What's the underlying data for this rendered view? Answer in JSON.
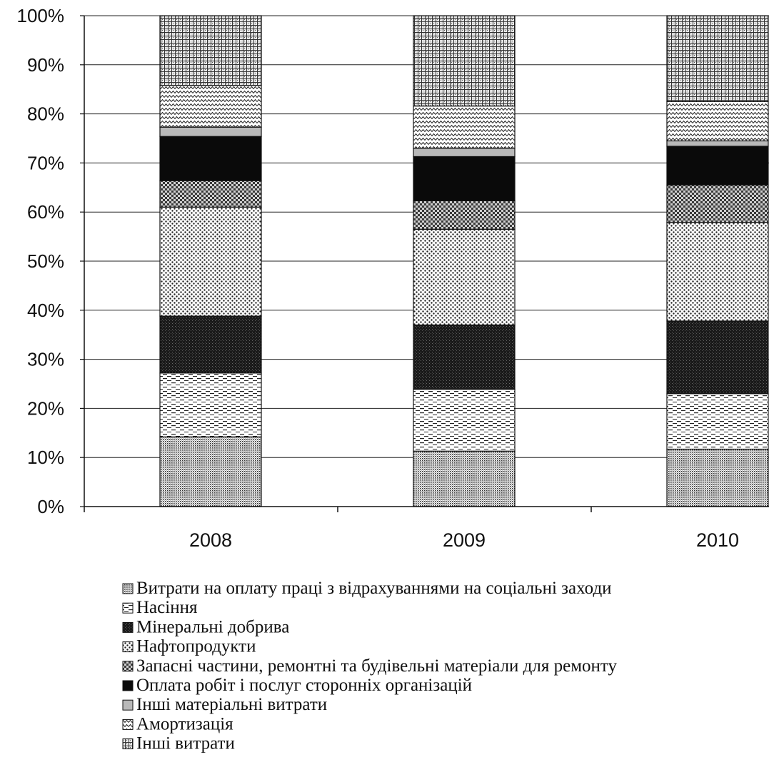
{
  "chart_data": {
    "type": "bar",
    "stacked": true,
    "percent_stacked": true,
    "categories": [
      "2008",
      "2009",
      "2010"
    ],
    "ylim": [
      0,
      100
    ],
    "ytick_labels": [
      "0%",
      "10%",
      "20%",
      "30%",
      "40%",
      "50%",
      "60%",
      "70%",
      "80%",
      "90%",
      "100%"
    ],
    "grid": true,
    "legend_position": "bottom",
    "series": [
      {
        "name": "Витрати на оплату праці з відрахуваннями на соціальні заходи",
        "values": [
          14.2,
          11.3,
          11.7
        ],
        "pattern": "dots-fine"
      },
      {
        "name": "Насіння",
        "values": [
          13.0,
          12.6,
          11.3
        ],
        "pattern": "dashes"
      },
      {
        "name": "Мінеральні добрива",
        "values": [
          11.6,
          13.1,
          14.8
        ],
        "pattern": "dark"
      },
      {
        "name": "Нафтопродукти",
        "values": [
          22.2,
          19.5,
          20.1
        ],
        "pattern": "dots-coarse"
      },
      {
        "name": "Запасні частини, ремонтні та  будівельні матеріали для ремонту",
        "values": [
          5.4,
          5.8,
          7.6
        ],
        "pattern": "checker"
      },
      {
        "name": "Оплата робіт і послуг сторонніх організацій",
        "values": [
          9.0,
          9.0,
          7.9
        ],
        "pattern": "solid-black"
      },
      {
        "name": "Інші матеріальні витрати",
        "values": [
          1.9,
          1.7,
          1.1
        ],
        "pattern": "solid-gray"
      },
      {
        "name": "Амортизація",
        "values": [
          8.5,
          8.6,
          8.0
        ],
        "pattern": "zigzag"
      },
      {
        "name": "Інші  витрати",
        "values": [
          14.2,
          18.4,
          17.5
        ],
        "pattern": "grid"
      }
    ]
  }
}
